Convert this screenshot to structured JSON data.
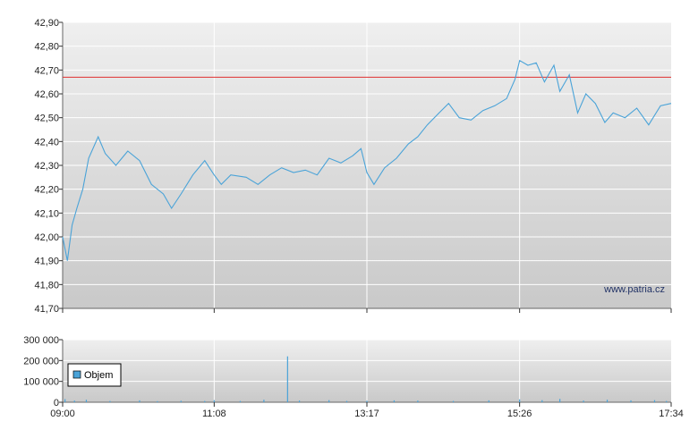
{
  "chart_data": [
    {
      "type": "line",
      "watermark": "www.patria.cz",
      "x_ticks": [
        "09:00",
        "11:08",
        "13:17",
        "15:26",
        "17:34"
      ],
      "y_ticks": [
        "41,70",
        "41,80",
        "41,90",
        "42,00",
        "42,10",
        "42,20",
        "42,30",
        "42,40",
        "42,50",
        "42,60",
        "42,70",
        "42,80",
        "42,90"
      ],
      "ylim": [
        41.7,
        42.9
      ],
      "reference_line": {
        "value": 42.67,
        "color": "#e03030"
      },
      "line_color": "#4aa3d8",
      "grid": true,
      "series": [
        {
          "points": [
            [
              "09:00",
              42.0
            ],
            [
              "09:04",
              41.9
            ],
            [
              "09:08",
              42.05
            ],
            [
              "09:12",
              42.12
            ],
            [
              "09:17",
              42.2
            ],
            [
              "09:22",
              42.33
            ],
            [
              "09:30",
              42.42
            ],
            [
              "09:36",
              42.35
            ],
            [
              "09:45",
              42.3
            ],
            [
              "09:55",
              42.36
            ],
            [
              "10:05",
              42.32
            ],
            [
              "10:15",
              42.22
            ],
            [
              "10:25",
              42.18
            ],
            [
              "10:32",
              42.12
            ],
            [
              "10:40",
              42.18
            ],
            [
              "10:50",
              42.26
            ],
            [
              "11:00",
              42.32
            ],
            [
              "11:08",
              42.26
            ],
            [
              "11:14",
              42.22
            ],
            [
              "11:22",
              42.26
            ],
            [
              "11:35",
              42.25
            ],
            [
              "11:45",
              42.22
            ],
            [
              "11:55",
              42.26
            ],
            [
              "12:05",
              42.29
            ],
            [
              "12:15",
              42.27
            ],
            [
              "12:25",
              42.28
            ],
            [
              "12:35",
              42.26
            ],
            [
              "12:45",
              42.33
            ],
            [
              "12:55",
              42.31
            ],
            [
              "13:05",
              42.34
            ],
            [
              "13:12",
              42.37
            ],
            [
              "13:17",
              42.27
            ],
            [
              "13:23",
              42.22
            ],
            [
              "13:32",
              42.29
            ],
            [
              "13:42",
              42.33
            ],
            [
              "13:52",
              42.39
            ],
            [
              "14:00",
              42.42
            ],
            [
              "14:08",
              42.47
            ],
            [
              "14:18",
              42.52
            ],
            [
              "14:26",
              42.56
            ],
            [
              "14:35",
              42.5
            ],
            [
              "14:45",
              42.49
            ],
            [
              "14:55",
              42.53
            ],
            [
              "15:05",
              42.55
            ],
            [
              "15:15",
              42.58
            ],
            [
              "15:22",
              42.66
            ],
            [
              "15:26",
              42.74
            ],
            [
              "15:33",
              42.72
            ],
            [
              "15:40",
              42.73
            ],
            [
              "15:47",
              42.65
            ],
            [
              "15:55",
              42.72
            ],
            [
              "16:00",
              42.61
            ],
            [
              "16:08",
              42.68
            ],
            [
              "16:15",
              42.52
            ],
            [
              "16:22",
              42.6
            ],
            [
              "16:30",
              42.56
            ],
            [
              "16:38",
              42.48
            ],
            [
              "16:45",
              42.52
            ],
            [
              "16:55",
              42.5
            ],
            [
              "17:05",
              42.54
            ],
            [
              "17:15",
              42.47
            ],
            [
              "17:25",
              42.55
            ],
            [
              "17:34",
              42.56
            ]
          ]
        }
      ]
    },
    {
      "type": "bar",
      "legend": "Objem",
      "legend_color": "#4aa3d8",
      "x_ticks": [
        "09:00",
        "11:08",
        "13:17",
        "15:26",
        "17:34"
      ],
      "y_ticks": [
        "0",
        "100 000",
        "200 000",
        "300 000"
      ],
      "ylim": [
        0,
        300000
      ],
      "series": [
        {
          "name": "Objem",
          "points": [
            [
              "09:02",
              15000
            ],
            [
              "09:10",
              8000
            ],
            [
              "09:20",
              12000
            ],
            [
              "09:40",
              6000
            ],
            [
              "10:05",
              9000
            ],
            [
              "10:20",
              5000
            ],
            [
              "10:40",
              7000
            ],
            [
              "11:00",
              6000
            ],
            [
              "11:08",
              10000
            ],
            [
              "11:30",
              6000
            ],
            [
              "11:50",
              12000
            ],
            [
              "12:10",
              220000
            ],
            [
              "12:20",
              8000
            ],
            [
              "12:45",
              10000
            ],
            [
              "13:00",
              6000
            ],
            [
              "13:17",
              7000
            ],
            [
              "13:40",
              9000
            ],
            [
              "14:00",
              8000
            ],
            [
              "14:30",
              6000
            ],
            [
              "15:00",
              9000
            ],
            [
              "15:26",
              14000
            ],
            [
              "15:45",
              10000
            ],
            [
              "16:00",
              16000
            ],
            [
              "16:20",
              8000
            ],
            [
              "16:40",
              12000
            ],
            [
              "17:00",
              9000
            ],
            [
              "17:20",
              10000
            ],
            [
              "17:30",
              6000
            ]
          ]
        }
      ]
    }
  ]
}
